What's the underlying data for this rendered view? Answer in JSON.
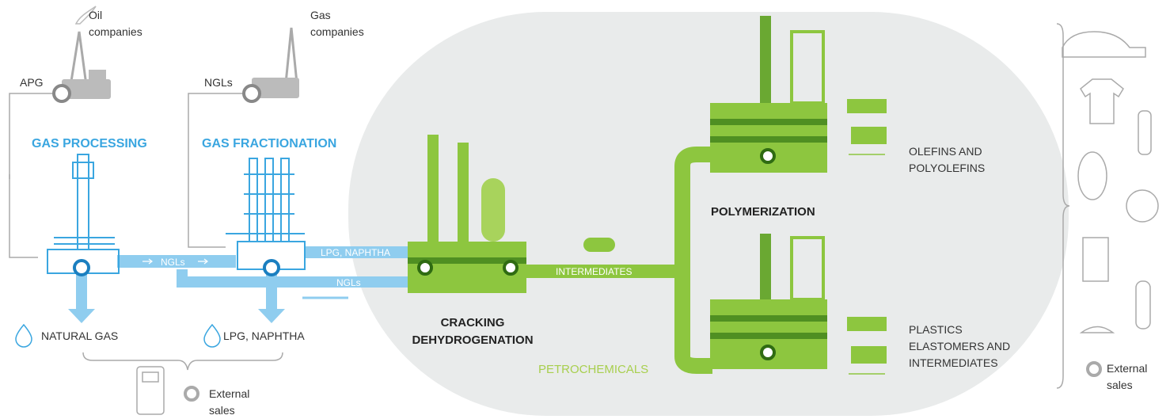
{
  "sources": [
    {
      "feed": "APG",
      "company": [
        "Oil",
        "companies"
      ]
    },
    {
      "feed": "NGLs",
      "company": [
        "Gas",
        "companies"
      ]
    }
  ],
  "stages": {
    "processing": "GAS PROCESSING",
    "fractionation": "GAS FRACTIONATION",
    "cracking": [
      "CRACKING",
      "DEHYDROGENATION"
    ],
    "polymerization": "POLYMERIZATION",
    "group": "PETROCHEMICALS"
  },
  "flows": {
    "ngls_1": "NGLs",
    "lpg_naphtha": "LPG, NAPHTHA",
    "ngls_2": "NGLs",
    "intermediates": "INTERMEDIATES"
  },
  "outputs": {
    "natural_gas": "NATURAL GAS",
    "lpg_naphtha": "LPG, NAPHTHA",
    "olefins": [
      "OLEFINS AND",
      "POLYOLEFINS"
    ],
    "plastics": [
      "PLASTICS",
      "ELASTOMERS AND",
      "INTERMEDIATES"
    ]
  },
  "legend": {
    "bottom": [
      "External",
      "sales"
    ],
    "right": [
      "External",
      "sales"
    ]
  }
}
